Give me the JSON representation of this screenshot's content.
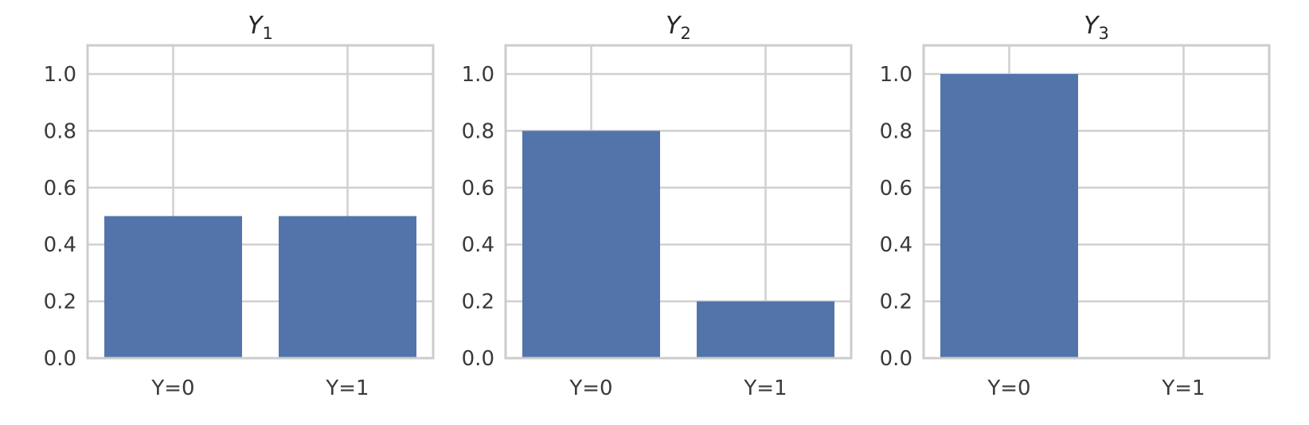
{
  "chart_data": [
    {
      "type": "bar",
      "title": "Y",
      "title_subscript": "1",
      "categories": [
        "Y=0",
        "Y=1"
      ],
      "values": [
        0.5,
        0.5
      ],
      "ylim": [
        0,
        1.1
      ],
      "yticks": [
        "0.0",
        "0.2",
        "0.4",
        "0.6",
        "0.8",
        "1.0"
      ],
      "grid": true,
      "bar_color": "#5274ab"
    },
    {
      "type": "bar",
      "title": "Y",
      "title_subscript": "2",
      "categories": [
        "Y=0",
        "Y=1"
      ],
      "values": [
        0.8,
        0.2
      ],
      "ylim": [
        0,
        1.1
      ],
      "yticks": [
        "0.0",
        "0.2",
        "0.4",
        "0.6",
        "0.8",
        "1.0"
      ],
      "grid": true,
      "bar_color": "#5274ab"
    },
    {
      "type": "bar",
      "title": "Y",
      "title_subscript": "3",
      "categories": [
        "Y=0",
        "Y=1"
      ],
      "values": [
        1.0,
        0.0
      ],
      "ylim": [
        0,
        1.1
      ],
      "yticks": [
        "0.0",
        "0.2",
        "0.4",
        "0.6",
        "0.8",
        "1.0"
      ],
      "grid": true,
      "bar_color": "#5274ab"
    }
  ]
}
